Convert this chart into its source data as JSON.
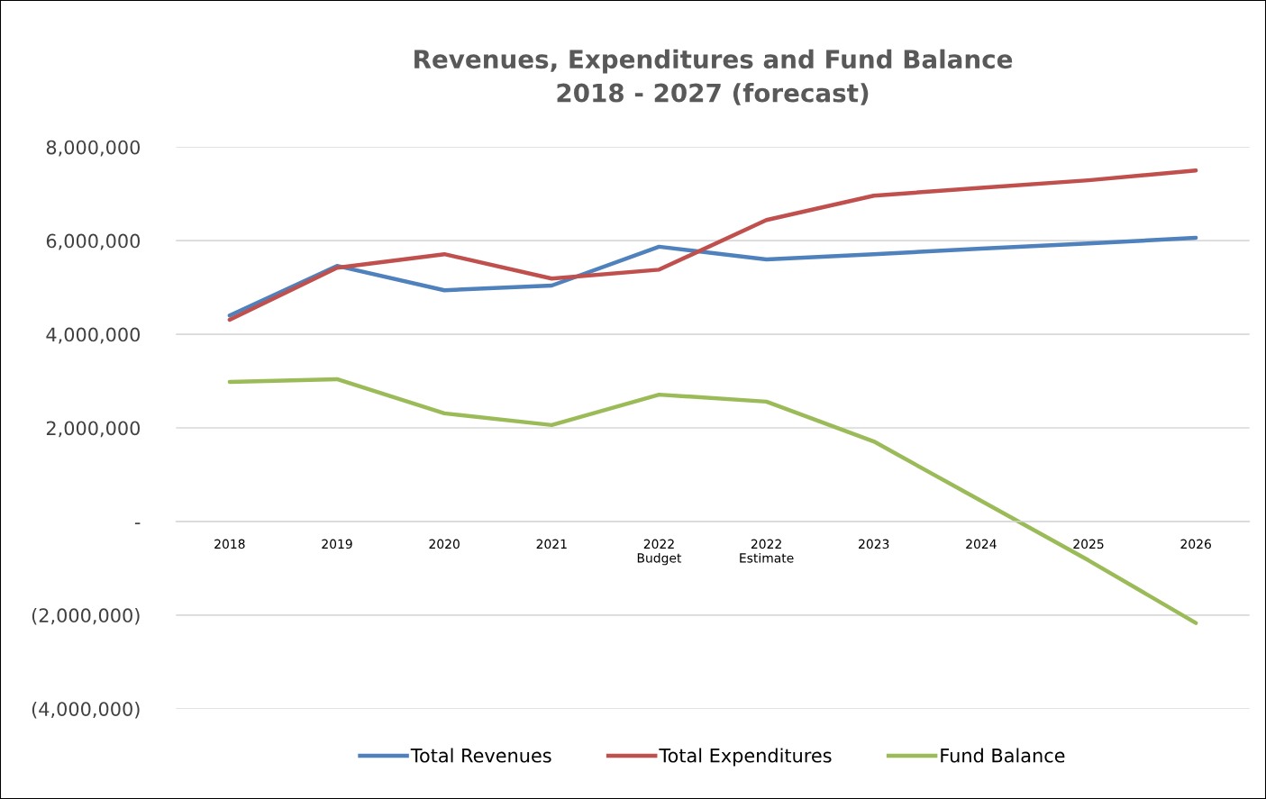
{
  "chart_data": {
    "type": "line",
    "title": "Revenues, Expenditures and Fund Balance\n2018 - 2027 (forecast)",
    "categories": [
      "2018",
      "2019",
      "2020",
      "2021",
      "2022\nBudget",
      "2022\nEstimate",
      "2023",
      "2024",
      "2025",
      "2026"
    ],
    "series": [
      {
        "name": "Total Revenues",
        "color": "#4f81bd",
        "values": [
          4400000,
          5460000,
          4940000,
          5040000,
          5870000,
          5600000,
          5710000,
          5830000,
          5940000,
          6060000
        ]
      },
      {
        "name": "Total Expenditures",
        "color": "#c0504d",
        "values": [
          4310000,
          5420000,
          5710000,
          5190000,
          5380000,
          6440000,
          6960000,
          7130000,
          7290000,
          7500000
        ]
      },
      {
        "name": "Fund Balance",
        "color": "#9bbb59",
        "values": [
          2980000,
          3040000,
          2310000,
          2060000,
          2710000,
          2560000,
          1710000,
          440000,
          -830000,
          -2170000
        ]
      }
    ],
    "ylim": [
      -4000000,
      8000000
    ],
    "yticks": [
      {
        "value": -4000000,
        "label": "(4,000,000)"
      },
      {
        "value": -2000000,
        "label": "(2,000,000)"
      },
      {
        "value": 0,
        "label": "-"
      },
      {
        "value": 2000000,
        "label": "2,000,000"
      },
      {
        "value": 4000000,
        "label": "4,000,000"
      },
      {
        "value": 6000000,
        "label": "6,000,000"
      },
      {
        "value": 8000000,
        "label": "8,000,000"
      }
    ],
    "grid": "y",
    "legend": "bottom",
    "marker": "none",
    "line_style": "solid"
  }
}
